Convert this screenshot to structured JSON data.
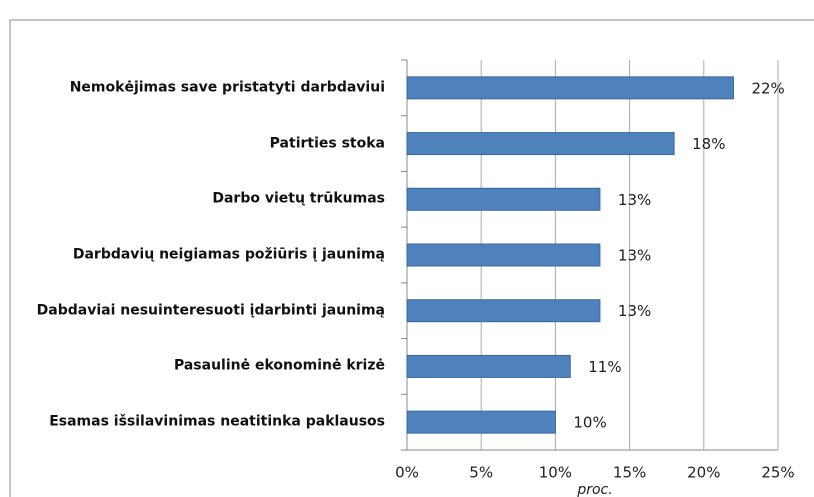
{
  "chart_data": {
    "type": "bar",
    "orientation": "horizontal",
    "categories": [
      "Nemokėjimas save pristatyti darbdaviui",
      "Patirties stoka",
      "Darbo vietų trūkumas",
      "Darbdavių neigiamas požiūris į jaunimą",
      "Dabdaviai nesuinteresuoti įdarbinti jaunimą",
      "Pasaulinė ekonominė krizė",
      "Esamas išsilavinimas neatitinka paklausos"
    ],
    "values": [
      22,
      18,
      13,
      13,
      13,
      11,
      10
    ],
    "value_labels": [
      "22%",
      "18%",
      "13%",
      "13%",
      "13%",
      "11%",
      "10%"
    ],
    "color": "#4f81bd",
    "xlim": [
      0,
      25
    ],
    "xticks": [
      {
        "value": 0,
        "label": "0%"
      },
      {
        "value": 5,
        "label": "5%"
      },
      {
        "value": 10,
        "label": "10%"
      },
      {
        "value": 15,
        "label": "15%"
      },
      {
        "value": 20,
        "label": "20%"
      },
      {
        "value": 25,
        "label": "25%"
      }
    ],
    "x_label": "proc.",
    "grid": true
  }
}
